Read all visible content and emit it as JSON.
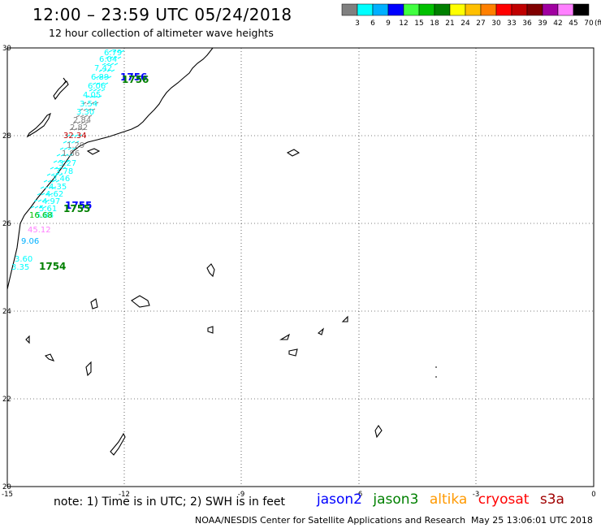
{
  "header": {
    "title": "12:00 – 23:59 UTC 05/24/2018",
    "subtitle": "12 hour collection of altimeter wave heights"
  },
  "legend": {
    "unit": "(ft)",
    "bins": [
      {
        "label": "3",
        "color": "#808080"
      },
      {
        "label": "6",
        "color": "#00ffff"
      },
      {
        "label": "9",
        "color": "#00b0ff"
      },
      {
        "label": "12",
        "color": "#0000ff"
      },
      {
        "label": "15",
        "color": "#40ff40"
      },
      {
        "label": "18",
        "color": "#00c000"
      },
      {
        "label": "21",
        "color": "#008000"
      },
      {
        "label": "24",
        "color": "#ffff00"
      },
      {
        "label": "27",
        "color": "#ffc000"
      },
      {
        "label": "30",
        "color": "#ff8000"
      },
      {
        "label": "33",
        "color": "#ff0000"
      },
      {
        "label": "36",
        "color": "#c00000"
      },
      {
        "label": "39",
        "color": "#800000"
      },
      {
        "label": "42",
        "color": "#a000a0"
      },
      {
        "label": "45",
        "color": "#ff80ff"
      },
      {
        "label": "70",
        "color": "#000000"
      }
    ]
  },
  "map": {
    "lon_labels": [
      "-15",
      "-12",
      "-9",
      "-6",
      "-3",
      "0"
    ],
    "lat_labels": [
      "30",
      "28",
      "26",
      "24",
      "22",
      "20"
    ],
    "track_labels": [
      {
        "text": "6.79",
        "color": "#00ffff"
      },
      {
        "text": "6.04",
        "color": "#00ffff"
      },
      {
        "text": "7.42",
        "color": "#00ffff"
      },
      {
        "text": "6.89",
        "color": "#00ffff"
      },
      {
        "text": "6.06",
        "color": "#00ffff"
      },
      {
        "text": "4.05",
        "color": "#00ffff"
      },
      {
        "text": "3.54",
        "color": "#00ffff"
      },
      {
        "text": "3.30",
        "color": "#00ffff"
      },
      {
        "text": "2.84",
        "color": "#808080"
      },
      {
        "text": "2.82",
        "color": "#808080"
      },
      {
        "text": "32.34",
        "color": "#c00000"
      },
      {
        "text": "1.29",
        "color": "#808080"
      },
      {
        "text": "1.86",
        "color": "#808080"
      },
      {
        "text": "3.27",
        "color": "#00ffff"
      },
      {
        "text": "3.78",
        "color": "#00ffff"
      },
      {
        "text": "3.46",
        "color": "#00ffff"
      },
      {
        "text": "4.35",
        "color": "#00ffff"
      },
      {
        "text": "4.62",
        "color": "#00ffff"
      },
      {
        "text": "4.97",
        "color": "#00ffff"
      },
      {
        "text": "5.61",
        "color": "#00ffff"
      },
      {
        "text": "5.84",
        "color": "#00ffff"
      },
      {
        "text": "16.68",
        "color": "#00c000"
      },
      {
        "text": "45.12",
        "color": "#ff80ff"
      },
      {
        "text": "9.06",
        "color": "#00b0ff"
      },
      {
        "text": "3.60",
        "color": "#00ffff"
      },
      {
        "text": "3.35",
        "color": "#00ffff"
      }
    ],
    "time_labels": [
      {
        "text": "1756",
        "color": "#0000ff"
      },
      {
        "text": "1756",
        "color": "#008000"
      },
      {
        "text": "1755",
        "color": "#0000ff"
      },
      {
        "text": "1755",
        "color": "#008000"
      },
      {
        "text": "1754",
        "color": "#008000"
      }
    ]
  },
  "footer": {
    "note": "note: 1) Time is in UTC; 2) SWH is in feet",
    "satellites": [
      {
        "name": "jason2",
        "color": "#0000ff"
      },
      {
        "name": "jason3",
        "color": "#008000"
      },
      {
        "name": "altika",
        "color": "#ff9900"
      },
      {
        "name": "cryosat",
        "color": "#ff0000"
      },
      {
        "name": "s3a",
        "color": "#a00000"
      }
    ],
    "credit": "NOAA/NESDIS Center for Satellite Applications and Research",
    "timestamp": "May 25 13:06:01 UTC 2018"
  }
}
